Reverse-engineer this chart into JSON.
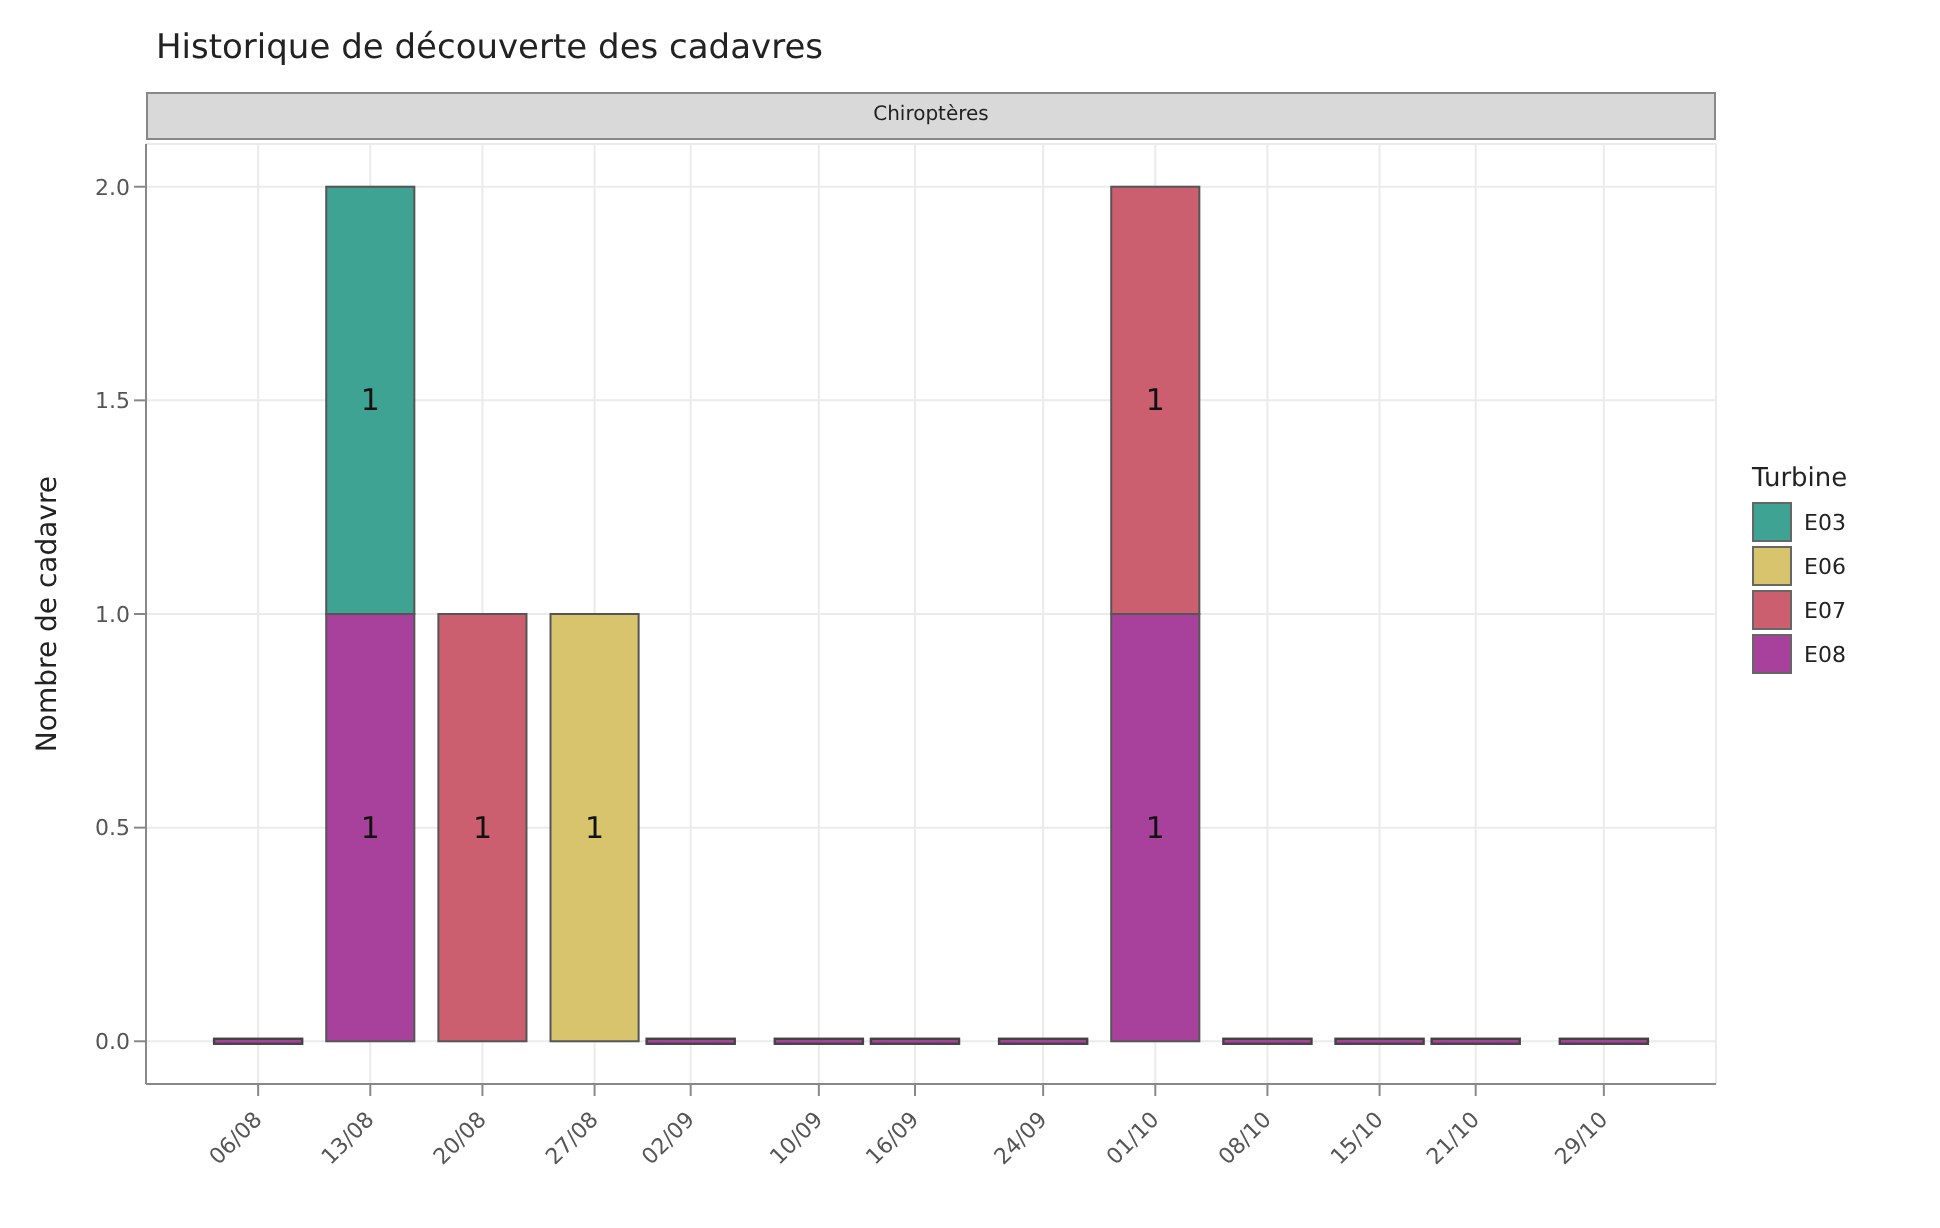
{
  "chart_data": {
    "type": "bar",
    "title": "Historique de découverte des cadavres",
    "subtitle": "Chiroptères",
    "ylabel": "Nombre de cadavre",
    "legend_title": "Turbine",
    "stacked": true,
    "legend": "right",
    "grid": true,
    "x": [
      "--08-06",
      "--08-13",
      "--08-20",
      "--08-27",
      "--09-02",
      "--09-10",
      "--09-16",
      "--09-24",
      "--10-01",
      "--10-08",
      "--10-15",
      "--10-21",
      "--10-29"
    ],
    "xlim": [
      "--07-30",
      "--11-05"
    ],
    "xticks": [
      {
        "value": "--08-06",
        "label": "06/08"
      },
      {
        "value": "--08-13",
        "label": "13/08"
      },
      {
        "value": "--08-20",
        "label": "20/08"
      },
      {
        "value": "--08-27",
        "label": "27/08"
      },
      {
        "value": "--09-02",
        "label": "02/09"
      },
      {
        "value": "--09-10",
        "label": "10/09"
      },
      {
        "value": "--09-16",
        "label": "16/09"
      },
      {
        "value": "--09-24",
        "label": "24/09"
      },
      {
        "value": "--10-01",
        "label": "01/10"
      },
      {
        "value": "--10-08",
        "label": "08/10"
      },
      {
        "value": "--10-15",
        "label": "15/10"
      },
      {
        "value": "--10-21",
        "label": "21/10"
      },
      {
        "value": "--10-29",
        "label": "29/10"
      }
    ],
    "ylim": [
      -0.1,
      2.1
    ],
    "yticks": [
      {
        "value": 0,
        "label": "0.0"
      },
      {
        "value": 0.5,
        "label": "0.5"
      },
      {
        "value": 1,
        "label": "1.0"
      },
      {
        "value": 1.5,
        "label": "1.5"
      },
      {
        "value": 2,
        "label": "2.0"
      }
    ],
    "series": [
      {
        "name": "E08",
        "color": "#a8419c",
        "values": [
          0,
          1,
          null,
          null,
          0,
          0,
          0,
          0,
          1,
          0,
          0,
          0,
          0
        ],
        "value_labels": [
          null,
          "1",
          null,
          null,
          null,
          null,
          null,
          null,
          "1",
          null,
          null,
          null,
          null
        ]
      },
      {
        "name": "E07",
        "color": "#cc5f6f",
        "values": [
          null,
          null,
          1,
          null,
          null,
          null,
          null,
          null,
          1,
          null,
          null,
          null,
          null
        ],
        "value_labels": [
          null,
          null,
          "1",
          null,
          null,
          null,
          null,
          null,
          "1",
          null,
          null,
          null,
          null
        ]
      },
      {
        "name": "E06",
        "color": "#d9c46e",
        "values": [
          null,
          null,
          null,
          1,
          null,
          null,
          null,
          null,
          null,
          null,
          null,
          null,
          null
        ],
        "value_labels": [
          null,
          null,
          null,
          "1",
          null,
          null,
          null,
          null,
          null,
          null,
          null,
          null,
          null
        ]
      },
      {
        "name": "E03",
        "color": "#3fa394",
        "values": [
          null,
          1,
          null,
          null,
          null,
          null,
          null,
          null,
          null,
          null,
          null,
          null,
          null
        ],
        "value_labels": [
          null,
          "1",
          null,
          null,
          null,
          null,
          null,
          null,
          null,
          null,
          null,
          null,
          null
        ]
      }
    ]
  }
}
